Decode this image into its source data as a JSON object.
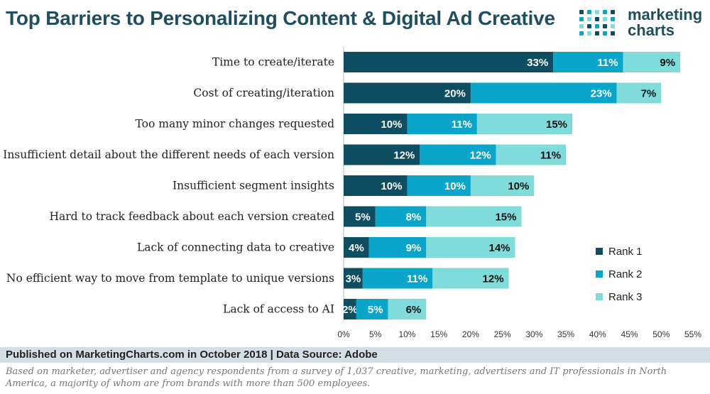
{
  "title": "Top Barriers to Personalizing Content & Digital Ad Creative",
  "logo": {
    "line1": "marketing",
    "line2": "charts"
  },
  "colors": {
    "rank1": "#0e4d62",
    "rank2": "#0aa5c8",
    "rank3": "#80dcdb",
    "title": "#1f4e5f"
  },
  "chart_data": {
    "type": "bar",
    "orientation": "horizontal",
    "stacked": true,
    "title": "Top Barriers to Personalizing Content & Digital Ad Creative",
    "categories": [
      "Time to create/iterate",
      "Cost of creating/iteration",
      "Too many minor changes requested",
      "Insufficient detail about the different needs of each version",
      "Insufficient segment insights",
      "Hard to track feedback about each version created",
      "Lack of connecting data to creative",
      "No efficient way to move from template to unique versions",
      "Lack of access to AI"
    ],
    "series": [
      {
        "name": "Rank 1",
        "values": [
          33,
          20,
          10,
          12,
          10,
          5,
          4,
          3,
          2
        ]
      },
      {
        "name": "Rank 2",
        "values": [
          11,
          23,
          11,
          12,
          10,
          8,
          9,
          11,
          5
        ]
      },
      {
        "name": "Rank 3",
        "values": [
          9,
          7,
          15,
          11,
          10,
          15,
          14,
          12,
          6
        ]
      }
    ],
    "xlim": [
      0,
      55
    ],
    "xticks": [
      "0%",
      "5%",
      "10%",
      "15%",
      "20%",
      "25%",
      "30%",
      "35%",
      "40%",
      "45%",
      "50%",
      "55%"
    ],
    "value_suffix": "%",
    "legend_position": "bottom-right",
    "grid": false
  },
  "footer": {
    "source": "Published on MarketingCharts.com in October 2018 | Data Source: Adobe",
    "note": "Based on marketer, advertiser and agency respondents from a survey of 1,037 creative, marketing, advertisers and IT professionals in North America, a majority of whom are from brands with more than 500 employees."
  }
}
